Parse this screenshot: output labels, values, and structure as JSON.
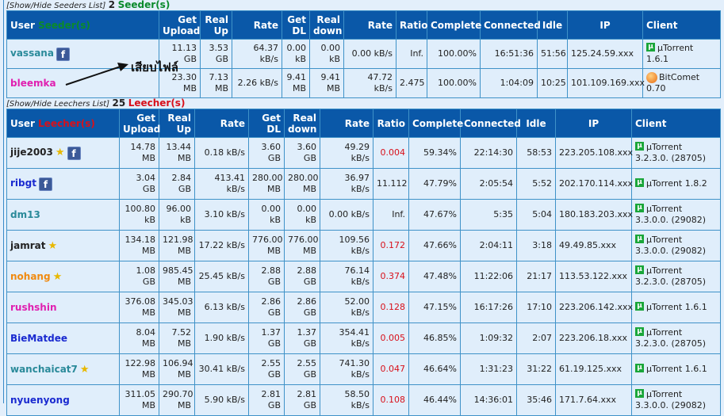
{
  "seeders_caption": {
    "toggle": "[Show/Hide Seeders List]",
    "count": "2",
    "label": "Seeder(s)"
  },
  "leechers_caption": {
    "toggle": "[Show/Hide Leechers List]",
    "count": "25",
    "label": "Leecher(s)"
  },
  "columns": {
    "user": "User",
    "get_upload": "Get Upload",
    "real_up": "Real Up",
    "rate": "Rate",
    "get_dl": "Get DL",
    "real_down": "Real down",
    "rate2": "Rate",
    "ratio": "Ratio",
    "complete": "Complete",
    "connected": "Connected",
    "idle": "Idle",
    "ip": "IP",
    "client": "Client"
  },
  "annotation": "เสียบไฟล์",
  "colors": {
    "header": "#0a58a8",
    "seeder_label": "#0a8a2a",
    "leecher_label": "#d8101a",
    "border": "#3f92c8"
  },
  "seeders": [
    {
      "user": "vassana",
      "color": "#2a8a9a",
      "fb": true,
      "star": false,
      "get_upload": "11.13 GB",
      "real_up": "3.53 GB",
      "rate": "64.37 kB/s",
      "get_dl": "0.00 kB",
      "real_down": "0.00 kB",
      "rate2": "0.00 kB/s",
      "ratio": "Inf.",
      "ratio_red": false,
      "complete": "100.00%",
      "connected": "16:51:36",
      "idle": "51:56",
      "ip": "125.24.59.xxx",
      "client": "µTorrent 1.6.1",
      "client_icon": "utorrent"
    },
    {
      "user": "bleemka",
      "color": "#e020b0",
      "fb": false,
      "star": false,
      "get_upload": "23.30 MB",
      "real_up": "7.13 MB",
      "rate": "2.26 kB/s",
      "get_dl": "9.41 MB",
      "real_down": "9.41 MB",
      "rate2": "47.72 kB/s",
      "ratio": "2.475",
      "ratio_red": false,
      "complete": "100.00%",
      "connected": "1:04:09",
      "idle": "10:25",
      "ip": "101.109.169.xxx",
      "client": "BitComet 0.70",
      "client_icon": "bitcomet"
    }
  ],
  "leechers": [
    {
      "user": "jije2003",
      "color": "#222222",
      "fb": true,
      "star": true,
      "get_upload": "14.78 MB",
      "real_up": "13.44 MB",
      "rate": "0.18 kB/s",
      "get_dl": "3.60 GB",
      "real_down": "3.60 GB",
      "rate2": "49.29 kB/s",
      "ratio": "0.004",
      "ratio_red": true,
      "complete": "59.34%",
      "connected": "22:14:30",
      "idle": "58:53",
      "ip": "223.205.108.xxx",
      "client": "µTorrent 3.2.3.0. (28705)",
      "client_icon": "utorrent"
    },
    {
      "user": "ribgt",
      "color": "#1a2ad0",
      "fb": true,
      "star": false,
      "get_upload": "3.04 GB",
      "real_up": "2.84 GB",
      "rate": "413.41 kB/s",
      "get_dl": "280.00 MB",
      "real_down": "280.00 MB",
      "rate2": "36.97 kB/s",
      "ratio": "11.112",
      "ratio_red": false,
      "complete": "47.79%",
      "connected": "2:05:54",
      "idle": "5:52",
      "ip": "202.170.114.xxx",
      "client": "µTorrent 1.8.2",
      "client_icon": "utorrent"
    },
    {
      "user": "dm13",
      "color": "#2a8a9a",
      "fb": false,
      "star": false,
      "get_upload": "100.80 kB",
      "real_up": "96.00 kB",
      "rate": "3.10 kB/s",
      "get_dl": "0.00 kB",
      "real_down": "0.00 kB",
      "rate2": "0.00 kB/s",
      "ratio": "Inf.",
      "ratio_red": false,
      "complete": "47.67%",
      "connected": "5:35",
      "idle": "5:04",
      "ip": "180.183.203.xxx",
      "client": "µTorrent 3.3.0.0. (29082)",
      "client_icon": "utorrent"
    },
    {
      "user": "jamrat",
      "color": "#222222",
      "fb": false,
      "star": true,
      "get_upload": "134.18 MB",
      "real_up": "121.98 MB",
      "rate": "17.22 kB/s",
      "get_dl": "776.00 MB",
      "real_down": "776.00 MB",
      "rate2": "109.56 kB/s",
      "ratio": "0.172",
      "ratio_red": true,
      "complete": "47.66%",
      "connected": "2:04:11",
      "idle": "3:18",
      "ip": "49.49.85.xxx",
      "client": "µTorrent 3.3.0.0. (29082)",
      "client_icon": "utorrent"
    },
    {
      "user": "nohang",
      "color": "#f08a10",
      "fb": false,
      "star": true,
      "get_upload": "1.08 GB",
      "real_up": "985.45 MB",
      "rate": "25.45 kB/s",
      "get_dl": "2.88 GB",
      "real_down": "2.88 GB",
      "rate2": "76.14 kB/s",
      "ratio": "0.374",
      "ratio_red": true,
      "complete": "47.48%",
      "connected": "11:22:06",
      "idle": "21:17",
      "ip": "113.53.122.xxx",
      "client": "µTorrent 3.2.3.0. (28705)",
      "client_icon": "utorrent"
    },
    {
      "user": "rushshin",
      "color": "#e020b0",
      "fb": false,
      "star": false,
      "get_upload": "376.08 MB",
      "real_up": "345.03 MB",
      "rate": "6.13 kB/s",
      "get_dl": "2.86 GB",
      "real_down": "2.86 GB",
      "rate2": "52.00 kB/s",
      "ratio": "0.128",
      "ratio_red": true,
      "complete": "47.15%",
      "connected": "16:17:26",
      "idle": "17:10",
      "ip": "223.206.142.xxx",
      "client": "µTorrent 1.6.1",
      "client_icon": "utorrent"
    },
    {
      "user": "BieMatdee",
      "color": "#1a2ad0",
      "fb": false,
      "star": false,
      "get_upload": "8.04 MB",
      "real_up": "7.52 MB",
      "rate": "1.90 kB/s",
      "get_dl": "1.37 GB",
      "real_down": "1.37 GB",
      "rate2": "354.41 kB/s",
      "ratio": "0.005",
      "ratio_red": true,
      "complete": "46.85%",
      "connected": "1:09:32",
      "idle": "2:07",
      "ip": "223.206.18.xxx",
      "client": "µTorrent 3.2.3.0. (28705)",
      "client_icon": "utorrent"
    },
    {
      "user": "wanchaicat7",
      "color": "#2a8a9a",
      "fb": false,
      "star": true,
      "get_upload": "122.98 MB",
      "real_up": "106.94 MB",
      "rate": "30.41 kB/s",
      "get_dl": "2.55 GB",
      "real_down": "2.55 GB",
      "rate2": "741.30 kB/s",
      "ratio": "0.047",
      "ratio_red": true,
      "complete": "46.64%",
      "connected": "1:31:23",
      "idle": "31:22",
      "ip": "61.19.125.xxx",
      "client": "µTorrent 1.6.1",
      "client_icon": "utorrent"
    },
    {
      "user": "nyuenyong",
      "color": "#1a2ad0",
      "fb": false,
      "star": false,
      "get_upload": "311.05 MB",
      "real_up": "290.70 MB",
      "rate": "5.90 kB/s",
      "get_dl": "2.81 GB",
      "real_down": "2.81 GB",
      "rate2": "58.50 kB/s",
      "ratio": "0.108",
      "ratio_red": true,
      "complete": "46.44%",
      "connected": "14:36:01",
      "idle": "35:46",
      "ip": "171.7.64.xxx",
      "client": "µTorrent 3.3.0.0. (29082)",
      "client_icon": "utorrent"
    }
  ]
}
